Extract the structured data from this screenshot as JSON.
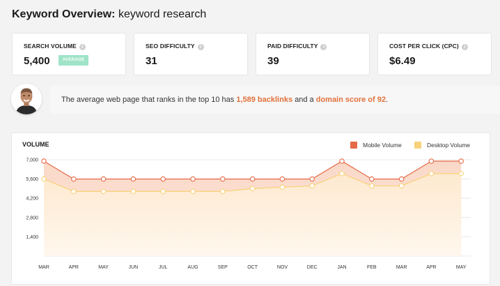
{
  "header": {
    "title_strong": "Keyword Overview:",
    "title_keyword": "keyword research"
  },
  "metrics": [
    {
      "label": "SEARCH VOLUME",
      "value": "5,400",
      "badge": "AVERAGE"
    },
    {
      "label": "SEO DIFFICULTY",
      "value": "31"
    },
    {
      "label": "PAID DIFFICULTY",
      "value": "39"
    },
    {
      "label": "COST PER CLICK (CPC)",
      "value": "$6.49"
    }
  ],
  "tip": {
    "prefix": "The average web page that ranks in the top 10 has ",
    "backlinks": "1,589 backlinks",
    "middle": " and a ",
    "domain_score": "domain score of 92",
    "suffix": "."
  },
  "chart_data": {
    "type": "area",
    "title": "VOLUME",
    "categories": [
      "MAR",
      "APR",
      "MAY",
      "JUN",
      "JUL",
      "AUG",
      "SEP",
      "OCT",
      "NOV",
      "DEC",
      "JAN",
      "FEB",
      "MAR",
      "APR",
      "MAY"
    ],
    "series": [
      {
        "name": "Mobile Volume",
        "color": "#e56a48",
        "fill": "#fad6c4",
        "values": [
          6900,
          5600,
          5600,
          5600,
          5600,
          5600,
          5600,
          5600,
          5600,
          5600,
          6900,
          5600,
          5600,
          6900,
          6900
        ]
      },
      {
        "name": "Desktop Volume",
        "color": "#f8d27a",
        "fill": "#fde9cf",
        "values": [
          5600,
          4700,
          4700,
          4700,
          4700,
          4700,
          4700,
          4900,
          5000,
          5100,
          6000,
          5100,
          5100,
          6000,
          6000
        ]
      }
    ],
    "yticks": [
      "7,000",
      "5,600",
      "4,200",
      "2,800",
      "1,400"
    ],
    "ytick_values": [
      7000,
      5600,
      4200,
      2800,
      1400
    ],
    "ylim": [
      0,
      7000
    ],
    "legend": "top-right"
  }
}
